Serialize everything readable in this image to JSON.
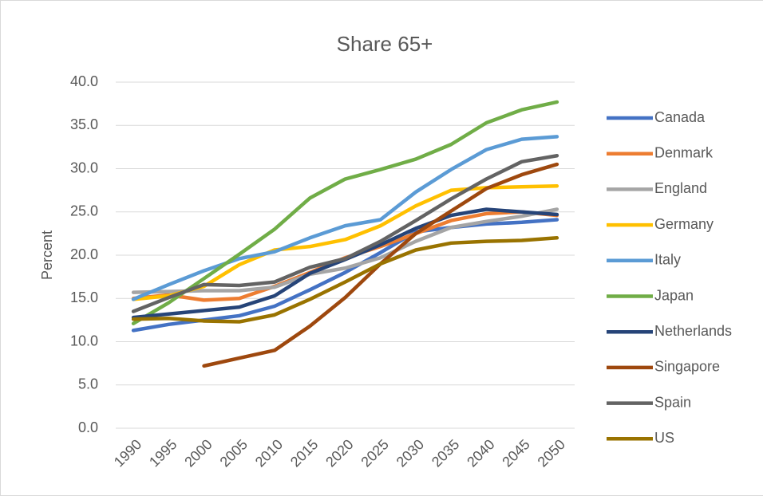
{
  "chart_data": {
    "type": "line",
    "title": "Share 65+",
    "y_label": "Percent",
    "categories": [
      "1990",
      "1995",
      "2000",
      "2005",
      "2010",
      "2015",
      "2020",
      "2025",
      "2030",
      "2035",
      "2040",
      "2045",
      "2050"
    ],
    "series": [
      {
        "name": "Canada",
        "color": "#4472c4",
        "values": [
          11.3,
          12.0,
          12.5,
          13.0,
          14.1,
          16.0,
          18.0,
          20.3,
          22.7,
          23.2,
          23.6,
          23.8,
          24.1
        ]
      },
      {
        "name": "Denmark",
        "color": "#ed7d31",
        "values": [
          15.0,
          15.4,
          14.8,
          15.0,
          16.4,
          18.0,
          19.7,
          21.0,
          22.5,
          24.0,
          24.8,
          25.0,
          24.6
        ]
      },
      {
        "name": "England",
        "color": "#a5a5a5",
        "values": [
          15.7,
          15.8,
          15.9,
          15.9,
          16.3,
          17.8,
          18.5,
          19.7,
          21.6,
          23.2,
          23.9,
          24.5,
          25.3
        ]
      },
      {
        "name": "Germany",
        "color": "#ffc000",
        "values": [
          14.9,
          15.3,
          16.4,
          18.9,
          20.6,
          21.0,
          21.8,
          23.4,
          25.7,
          27.5,
          27.8,
          27.9,
          28.0
        ]
      },
      {
        "name": "Italy",
        "color": "#5b9bd5",
        "values": [
          14.9,
          16.6,
          18.2,
          19.6,
          20.4,
          22.0,
          23.4,
          24.1,
          27.3,
          29.9,
          32.2,
          33.4,
          33.7
        ]
      },
      {
        "name": "Japan",
        "color": "#70ad47",
        "values": [
          12.1,
          14.5,
          17.3,
          20.1,
          23.0,
          26.6,
          28.8,
          29.9,
          31.1,
          32.8,
          35.3,
          36.8,
          37.7
        ]
      },
      {
        "name": "Netherlands",
        "color": "#264478",
        "values": [
          12.8,
          13.2,
          13.6,
          14.0,
          15.3,
          17.9,
          19.5,
          21.2,
          23.1,
          24.6,
          25.3,
          25.0,
          24.7
        ]
      },
      {
        "name": "Singapore",
        "color": "#9e480e",
        "values": [
          null,
          null,
          7.2,
          8.1,
          9.0,
          11.8,
          15.1,
          19.0,
          22.5,
          25.1,
          27.7,
          29.3,
          30.5
        ]
      },
      {
        "name": "Spain",
        "color": "#636363",
        "values": [
          13.5,
          15.1,
          16.6,
          16.5,
          16.9,
          18.6,
          19.6,
          21.6,
          24.0,
          26.5,
          28.8,
          30.8,
          31.5
        ]
      },
      {
        "name": "US",
        "color": "#997300",
        "values": [
          12.6,
          12.7,
          12.4,
          12.3,
          13.1,
          14.9,
          16.9,
          19.0,
          20.6,
          21.4,
          21.6,
          21.7,
          22.0
        ]
      }
    ],
    "ylim": [
      0,
      40
    ],
    "yticks": [
      {
        "value": 0,
        "label": "0.0"
      },
      {
        "value": 5,
        "label": "5.0"
      },
      {
        "value": 10,
        "label": "10.0"
      },
      {
        "value": 15,
        "label": "15.0"
      },
      {
        "value": 20,
        "label": "20.0"
      },
      {
        "value": 25,
        "label": "25.0"
      },
      {
        "value": 30,
        "label": "30.0"
      },
      {
        "value": 35,
        "label": "35.0"
      },
      {
        "value": 40,
        "label": "40.0"
      }
    ],
    "grid": true,
    "legend": "right"
  }
}
